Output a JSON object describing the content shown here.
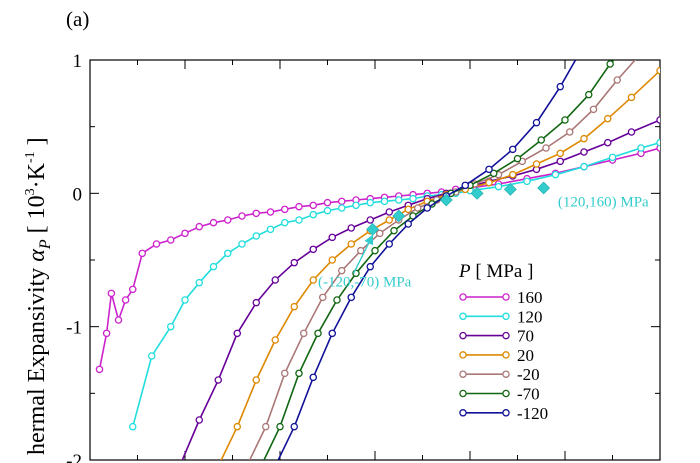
{
  "panel_label": "(a)",
  "chart_data": {
    "type": "line",
    "ylabel": "hermal Expansivity α_P [ 10³·K⁻¹ ]",
    "ylabel_parts": {
      "prefix": "hermal Expansivity ",
      "alpha": "α",
      "alpha_sub": "P",
      "bracket_open": " [ 10",
      "exp1": "3",
      "mid": "·K",
      "exp2": "-1",
      "bracket_close": " ]"
    },
    "ylim": [
      -2,
      1
    ],
    "yticks": [
      {
        "value": 1,
        "label": "1"
      },
      {
        "value": 0,
        "label": "0"
      },
      {
        "value": -1,
        "label": "-1"
      },
      {
        "value": -2,
        "label": "-2"
      }
    ],
    "grid": false,
    "legend": {
      "placement": "right",
      "title_var": "P",
      "title_unit": " [ MPa ]"
    },
    "series": [
      {
        "name": "160",
        "color": "#cc22cc",
        "points": [
          [
            0.2,
            -1.32
          ],
          [
            0.35,
            -1.05
          ],
          [
            0.45,
            -0.75
          ],
          [
            0.6,
            -0.95
          ],
          [
            0.75,
            -0.8
          ],
          [
            0.9,
            -0.72
          ],
          [
            1.1,
            -0.45
          ],
          [
            1.4,
            -0.38
          ],
          [
            1.7,
            -0.35
          ],
          [
            2.0,
            -0.3
          ],
          [
            2.3,
            -0.25
          ],
          [
            2.6,
            -0.22
          ],
          [
            2.9,
            -0.2
          ],
          [
            3.2,
            -0.17
          ],
          [
            3.5,
            -0.15
          ],
          [
            3.8,
            -0.14
          ],
          [
            4.1,
            -0.12
          ],
          [
            4.4,
            -0.1
          ],
          [
            4.7,
            -0.09
          ],
          [
            5.0,
            -0.07
          ],
          [
            5.3,
            -0.06
          ],
          [
            5.6,
            -0.05
          ],
          [
            5.9,
            -0.04
          ],
          [
            6.2,
            -0.03
          ],
          [
            6.5,
            -0.02
          ],
          [
            6.8,
            -0.01
          ],
          [
            7.1,
            0.0
          ],
          [
            7.4,
            0.01
          ],
          [
            7.7,
            0.03
          ],
          [
            8.0,
            0.04
          ],
          [
            8.6,
            0.07
          ],
          [
            9.2,
            0.11
          ],
          [
            9.8,
            0.15
          ],
          [
            10.4,
            0.2
          ],
          [
            11.0,
            0.25
          ],
          [
            11.6,
            0.3
          ],
          [
            12.0,
            0.34
          ]
        ]
      },
      {
        "name": "120",
        "color": "#22dddd",
        "points": [
          [
            0.9,
            -1.75
          ],
          [
            1.3,
            -1.22
          ],
          [
            1.7,
            -1.0
          ],
          [
            2.0,
            -0.8
          ],
          [
            2.3,
            -0.67
          ],
          [
            2.6,
            -0.55
          ],
          [
            2.9,
            -0.45
          ],
          [
            3.2,
            -0.38
          ],
          [
            3.5,
            -0.32
          ],
          [
            3.8,
            -0.27
          ],
          [
            4.1,
            -0.22
          ],
          [
            4.4,
            -0.2
          ],
          [
            4.7,
            -0.16
          ],
          [
            5.0,
            -0.13
          ],
          [
            5.3,
            -0.11
          ],
          [
            5.6,
            -0.09
          ],
          [
            5.9,
            -0.07
          ],
          [
            6.2,
            -0.06
          ],
          [
            6.5,
            -0.05
          ],
          [
            6.8,
            -0.04
          ],
          [
            7.1,
            -0.02
          ],
          [
            7.4,
            -0.01
          ],
          [
            7.7,
            0.0
          ],
          [
            8.0,
            0.02
          ],
          [
            8.6,
            0.05
          ],
          [
            9.2,
            0.09
          ],
          [
            9.8,
            0.14
          ],
          [
            10.4,
            0.2
          ],
          [
            11.0,
            0.27
          ],
          [
            11.6,
            0.34
          ],
          [
            12.0,
            0.38
          ]
        ]
      },
      {
        "name": "70",
        "color": "#660099",
        "points": [
          [
            1.8,
            -2.15
          ],
          [
            2.3,
            -1.7
          ],
          [
            2.7,
            -1.4
          ],
          [
            3.1,
            -1.05
          ],
          [
            3.5,
            -0.82
          ],
          [
            3.9,
            -0.65
          ],
          [
            4.3,
            -0.52
          ],
          [
            4.7,
            -0.42
          ],
          [
            5.1,
            -0.33
          ],
          [
            5.5,
            -0.26
          ],
          [
            5.9,
            -0.2
          ],
          [
            6.3,
            -0.14
          ],
          [
            6.7,
            -0.09
          ],
          [
            7.1,
            -0.04
          ],
          [
            7.5,
            0.0
          ],
          [
            7.9,
            0.04
          ],
          [
            8.4,
            0.09
          ],
          [
            8.9,
            0.13
          ],
          [
            9.4,
            0.18
          ],
          [
            9.9,
            0.24
          ],
          [
            10.4,
            0.31
          ],
          [
            10.9,
            0.38
          ],
          [
            11.4,
            0.46
          ],
          [
            12.0,
            0.55
          ]
        ]
      },
      {
        "name": "20",
        "color": "#dd8800",
        "points": [
          [
            2.6,
            -2.15
          ],
          [
            3.1,
            -1.75
          ],
          [
            3.5,
            -1.4
          ],
          [
            3.9,
            -1.1
          ],
          [
            4.3,
            -0.85
          ],
          [
            4.7,
            -0.65
          ],
          [
            5.1,
            -0.5
          ],
          [
            5.5,
            -0.38
          ],
          [
            5.9,
            -0.28
          ],
          [
            6.3,
            -0.2
          ],
          [
            6.7,
            -0.12
          ],
          [
            7.1,
            -0.06
          ],
          [
            7.5,
            -0.01
          ],
          [
            7.9,
            0.03
          ],
          [
            8.4,
            0.08
          ],
          [
            8.9,
            0.14
          ],
          [
            9.4,
            0.22
          ],
          [
            9.9,
            0.3
          ],
          [
            10.4,
            0.41
          ],
          [
            10.9,
            0.56
          ],
          [
            11.4,
            0.72
          ],
          [
            12.0,
            0.92
          ]
        ]
      },
      {
        "name": "-20",
        "color": "#aa7777",
        "points": [
          [
            3.2,
            -2.15
          ],
          [
            3.7,
            -1.75
          ],
          [
            4.1,
            -1.35
          ],
          [
            4.5,
            -1.05
          ],
          [
            4.9,
            -0.78
          ],
          [
            5.3,
            -0.58
          ],
          [
            5.7,
            -0.43
          ],
          [
            6.1,
            -0.3
          ],
          [
            6.5,
            -0.2
          ],
          [
            6.9,
            -0.11
          ],
          [
            7.3,
            -0.05
          ],
          [
            7.7,
            0.01
          ],
          [
            8.1,
            0.07
          ],
          [
            8.6,
            0.14
          ],
          [
            9.1,
            0.24
          ],
          [
            9.6,
            0.34
          ],
          [
            10.1,
            0.46
          ],
          [
            10.6,
            0.63
          ],
          [
            11.1,
            0.85
          ],
          [
            11.6,
            1.05
          ]
        ]
      },
      {
        "name": "-70",
        "color": "#116611",
        "points": [
          [
            3.5,
            -2.15
          ],
          [
            4.0,
            -1.75
          ],
          [
            4.4,
            -1.35
          ],
          [
            4.8,
            -1.05
          ],
          [
            5.2,
            -0.8
          ],
          [
            5.6,
            -0.6
          ],
          [
            6.0,
            -0.43
          ],
          [
            6.4,
            -0.28
          ],
          [
            6.8,
            -0.17
          ],
          [
            7.2,
            -0.08
          ],
          [
            7.6,
            0.0
          ],
          [
            8.0,
            0.06
          ],
          [
            8.5,
            0.15
          ],
          [
            9.0,
            0.26
          ],
          [
            9.5,
            0.4
          ],
          [
            10.0,
            0.55
          ],
          [
            10.5,
            0.74
          ],
          [
            10.95,
            0.97
          ],
          [
            11.3,
            1.1
          ]
        ]
      },
      {
        "name": "-120",
        "color": "#111199",
        "points": [
          [
            3.8,
            -2.15
          ],
          [
            4.3,
            -1.75
          ],
          [
            4.7,
            -1.38
          ],
          [
            5.1,
            -1.05
          ],
          [
            5.5,
            -0.78
          ],
          [
            5.9,
            -0.55
          ],
          [
            6.3,
            -0.38
          ],
          [
            6.7,
            -0.23
          ],
          [
            7.1,
            -0.11
          ],
          [
            7.5,
            -0.02
          ],
          [
            7.9,
            0.06
          ],
          [
            8.4,
            0.18
          ],
          [
            8.9,
            0.33
          ],
          [
            9.4,
            0.53
          ],
          [
            9.9,
            0.8
          ],
          [
            10.3,
            1.05
          ]
        ]
      }
    ],
    "crossing_markers": {
      "color": "#33cccc",
      "points": [
        [
          5.95,
          -0.27
        ],
        [
          6.5,
          -0.17
        ],
        [
          7.5,
          -0.05
        ],
        [
          8.15,
          0.0
        ],
        [
          8.85,
          0.03
        ],
        [
          9.55,
          0.04
        ]
      ]
    },
    "annotations": [
      {
        "text": "(120,160) MPa",
        "x": 9.85,
        "y": -0.1,
        "anchor": "start"
      },
      {
        "text": "(-120,-70) MPa",
        "x": 4.8,
        "y": -0.7,
        "anchor": "start",
        "arrow_to": [
          5.95,
          -0.27
        ],
        "arrow_from": [
          5.55,
          -0.6
        ]
      }
    ]
  }
}
